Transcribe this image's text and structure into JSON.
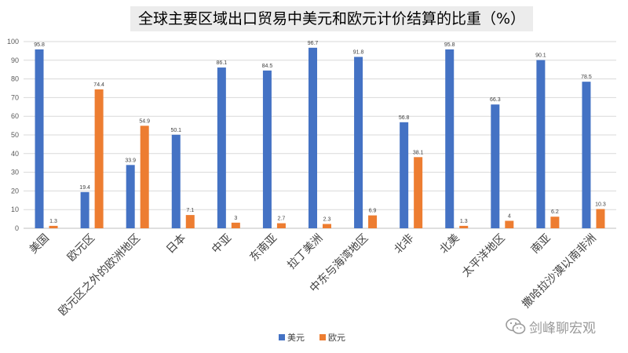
{
  "chart_data": {
    "type": "bar",
    "title": "全球主要区域出口贸易中美元和欧元计价结算的比重（%）",
    "categories": [
      "美国",
      "欧元区",
      "欧元区之外的欧洲地区",
      "日本",
      "中亚",
      "东南亚",
      "拉丁美洲",
      "中东与海湾地区",
      "北非",
      "北美",
      "太平洋地区",
      "南亚",
      "撒哈拉沙漠以南非洲"
    ],
    "series": [
      {
        "name": "美元",
        "color": "#4472c4",
        "values": [
          95.8,
          19.4,
          33.9,
          50.1,
          86.1,
          84.5,
          96.7,
          91.8,
          56.8,
          95.8,
          66.3,
          90.1,
          78.5
        ]
      },
      {
        "name": "欧元",
        "color": "#ed7d31",
        "values": [
          1.3,
          74.4,
          54.9,
          7.1,
          3,
          2.7,
          2.3,
          6.9,
          38.1,
          1.3,
          4,
          6.2,
          10.3
        ]
      }
    ],
    "ylim": [
      0,
      100
    ],
    "yticks": [
      0,
      10,
      20,
      30,
      40,
      50,
      60,
      70,
      80,
      90,
      100
    ],
    "grid": true,
    "legend_position": "bottom"
  },
  "watermark": {
    "text": "剑峰聊宏观",
    "icon": "wechat-icon"
  }
}
